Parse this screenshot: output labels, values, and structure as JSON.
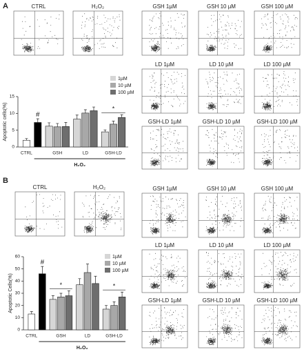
{
  "panels": [
    {
      "label": "A",
      "plots": [
        "CTRL",
        "H₂O₂",
        "GSH 1µM",
        "GSH 10 µM",
        "GSH 100 µM",
        "LD 1µM",
        "LD 10 µM",
        "LD 100 µM",
        "GSH-LD 1µM",
        "GSH-LD 10 µM",
        "GSH-LD 100 µM"
      ],
      "chart_data": {
        "type": "bar",
        "y_label": "Apoptotic cells(%)",
        "ylim": [
          0,
          15
        ],
        "yticks": [
          0,
          5,
          10,
          15
        ],
        "legend": [
          {
            "name": "1µM",
            "color": "#d6d6d6"
          },
          {
            "name": "10 µM",
            "color": "#a8a8a8"
          },
          {
            "name": "100 µM",
            "color": "#6e6e6e"
          }
        ],
        "x_group_label": "H₂O₂",
        "groups": [
          {
            "label": "CTRL",
            "values": [
              2
            ],
            "errors": [
              0.5
            ],
            "colors": [
              "#ffffff"
            ]
          },
          {
            "label": null,
            "values": [
              7.3
            ],
            "errors": [
              1.1
            ],
            "colors": [
              "#000000"
            ],
            "annotation": "#"
          },
          {
            "label": "GSH",
            "values": [
              6.2,
              6.0,
              6.1
            ],
            "errors": [
              1.0,
              1.0,
              1.2
            ]
          },
          {
            "label": "LD",
            "values": [
              8.3,
              10.1,
              10.8
            ],
            "errors": [
              1.2,
              1.0,
              1.1
            ]
          },
          {
            "label": "GSH-LD",
            "values": [
              4.5,
              6.8,
              8.8
            ],
            "errors": [
              0.6,
              0.9,
              0.8
            ],
            "annotation": "*"
          }
        ]
      }
    },
    {
      "label": "B",
      "plots": [
        "CTRL",
        "H₂O₂",
        "GSH 1µM",
        "GSH 10 µM",
        "GSH 100 µM",
        "LD 1µM",
        "LD 10 µM",
        "LD 100 µM",
        "GSH-LD 1µM",
        "GSH-LD 10 µM",
        "GSH-LD 100 µM"
      ],
      "chart_data": {
        "type": "bar",
        "y_label": "Apoptotic Cells(%)",
        "ylim": [
          0,
          60
        ],
        "yticks": [
          0,
          10,
          20,
          30,
          40,
          50,
          60
        ],
        "legend": [
          {
            "name": "1µM",
            "color": "#d6d6d6"
          },
          {
            "name": "10 µM",
            "color": "#a8a8a8"
          },
          {
            "name": "100 µM",
            "color": "#6e6e6e"
          }
        ],
        "x_group_label": "H₂O₂",
        "groups": [
          {
            "label": "CTRL",
            "values": [
              13
            ],
            "errors": [
              2
            ],
            "colors": [
              "#ffffff"
            ]
          },
          {
            "label": null,
            "values": [
              46
            ],
            "errors": [
              6
            ],
            "colors": [
              "#000000"
            ],
            "annotation": "#"
          },
          {
            "label": "GSH",
            "values": [
              25,
              27,
              28
            ],
            "errors": [
              3,
              3,
              4
            ],
            "annotation": "*"
          },
          {
            "label": "LD",
            "values": [
              37,
              47,
              38
            ],
            "errors": [
              5,
              7,
              6
            ]
          },
          {
            "label": "GSH-LD",
            "values": [
              17,
              20,
              27
            ],
            "errors": [
              3,
              3,
              4
            ],
            "annotation": "*"
          }
        ]
      }
    }
  ]
}
